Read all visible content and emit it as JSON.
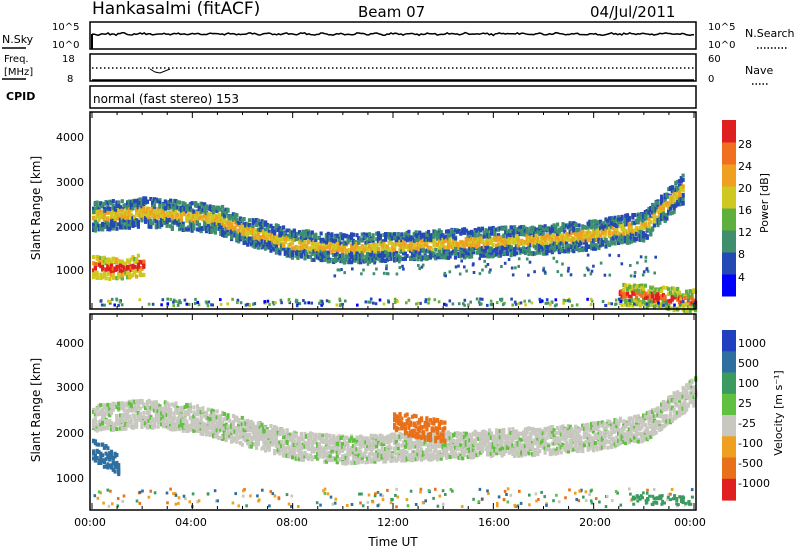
{
  "header": {
    "station": "Hankasalmi (fitACF)",
    "beam": "Beam 07",
    "date": "04/Jul/2011"
  },
  "noise_panel": {
    "left_label": "N.Sky",
    "left_ticks": [
      "10^5",
      "10^0"
    ],
    "right_ticks": [
      "10^5",
      "10^0"
    ],
    "right_label": "N.Search"
  },
  "freq_panel": {
    "left_label_line1": "Freq.",
    "left_label_line2": "[MHz]",
    "left_ticks": [
      "18",
      "8"
    ],
    "right_ticks": [
      "60",
      "0"
    ],
    "right_label": "Nave"
  },
  "cpid_panel": {
    "label": "CPID",
    "text": "normal (fast stereo) 153"
  },
  "x_axis": {
    "label": "Time UT",
    "ticks": [
      "00:00",
      "04:00",
      "08:00",
      "12:00",
      "16:00",
      "20:00",
      "00:00"
    ]
  },
  "power_panel": {
    "ylabel": "Slant Range [km]",
    "yticks": [
      "1000",
      "2000",
      "3000",
      "4000"
    ],
    "colorbar_label": "Power [dB]",
    "colorbar_ticks": [
      "4",
      "8",
      "12",
      "16",
      "20",
      "24",
      "28"
    ]
  },
  "velocity_panel": {
    "ylabel": "Slant Range [km]",
    "yticks": [
      "1000",
      "2000",
      "3000",
      "4000"
    ],
    "colorbar_label": "Velocity [m s⁻¹]",
    "colorbar_ticks": [
      "1000",
      "500",
      "100",
      "25",
      "-25",
      "-100",
      "-500",
      "-1000"
    ]
  },
  "colors": {
    "power_scale": [
      "#0000ff",
      "#2448b4",
      "#3f8f6f",
      "#5faf3f",
      "#cfc820",
      "#f0a020",
      "#f07020",
      "#e02020"
    ],
    "velocity_scale": [
      "#2040c0",
      "#2e6f9f",
      "#3a9a5f",
      "#60c040",
      "#c8c8c0",
      "#f0a020",
      "#e87018",
      "#e02020"
    ]
  },
  "chart_data": {
    "type": "heatmap",
    "x_range_hours": [
      0,
      24
    ],
    "y_range_km": [
      180,
      4500
    ],
    "power_features": [
      {
        "name": "main band",
        "t": [
          0,
          1,
          2,
          3,
          4,
          5,
          6,
          8,
          10,
          12,
          14,
          16,
          18,
          20,
          22,
          23.5
        ],
        "range_km": [
          2200,
          2250,
          2300,
          2250,
          2200,
          2150,
          1900,
          1600,
          1500,
          1550,
          1600,
          1650,
          1700,
          1800,
          2000,
          2800
        ],
        "power_db": 16
      },
      {
        "name": "near echoes",
        "t": [
          0,
          1,
          2
        ],
        "range_km": [
          1100,
          1050,
          1150
        ],
        "power_db": 26
      },
      {
        "name": "late near echoes",
        "t": [
          21,
          22,
          23,
          24
        ],
        "range_km": [
          500,
          450,
          400,
          350
        ],
        "power_db": 24
      }
    ],
    "velocity_features": [
      {
        "name": "main band",
        "t": [
          0,
          2,
          4,
          6,
          8,
          10,
          12,
          14,
          16,
          18,
          20,
          22,
          24
        ],
        "range_km": [
          2200,
          2300,
          2200,
          1900,
          1600,
          1500,
          1550,
          1600,
          1650,
          1700,
          1800,
          2000,
          2800
        ],
        "velocity_ms": 0
      },
      {
        "name": "early positive",
        "t": [
          0,
          1
        ],
        "range_km": [
          1500,
          1200
        ],
        "velocity_ms": 300
      },
      {
        "name": "afternoon negative",
        "t": [
          12,
          13,
          14
        ],
        "range_km": [
          2100,
          2000,
          1900
        ],
        "velocity_ms": -300
      }
    ]
  }
}
